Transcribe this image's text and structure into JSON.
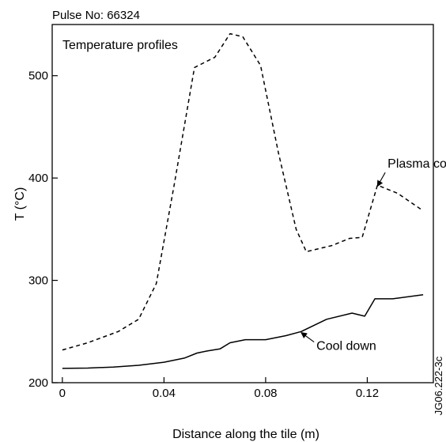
{
  "chart_data": {
    "type": "line",
    "pulse_label": "Pulse No: 66324",
    "plot_label": "Temperature profiles",
    "xlabel": "Distance along the tile (m)",
    "ylabel": "T (°C)",
    "figure_code": "JG06.222-3c",
    "xlim": [
      -0.004,
      0.146
    ],
    "ylim": [
      200,
      550
    ],
    "x_ticks": [
      0,
      0.04,
      0.08,
      0.12
    ],
    "x_tick_labels": [
      "0",
      "0.04",
      "0.08",
      "0.12"
    ],
    "y_ticks": [
      200,
      300,
      400,
      500
    ],
    "y_tick_labels": [
      "200",
      "300",
      "400",
      "500"
    ],
    "series": [
      {
        "name": "Plasma contact",
        "style": "dashed",
        "x": [
          0,
          0.01,
          0.022,
          0.03,
          0.037,
          0.044,
          0.052,
          0.06,
          0.066,
          0.071,
          0.078,
          0.085,
          0.092,
          0.096,
          0.106,
          0.113,
          0.118,
          0.124,
          0.132,
          0.142
        ],
        "y": [
          232,
          239,
          250,
          262,
          297,
          393,
          508,
          518,
          541,
          538,
          510,
          425,
          350,
          328,
          334,
          341,
          342,
          393,
          385,
          368
        ]
      },
      {
        "name": "Cool down",
        "style": "solid",
        "x": [
          0,
          0.01,
          0.02,
          0.03,
          0.04,
          0.048,
          0.053,
          0.057,
          0.062,
          0.066,
          0.072,
          0.08,
          0.088,
          0.094,
          0.104,
          0.114,
          0.119,
          0.123,
          0.13,
          0.142
        ],
        "y": [
          214,
          214.3,
          215.3,
          217,
          220,
          224,
          229,
          231,
          233,
          239,
          242,
          242,
          246,
          250,
          262,
          268,
          265,
          282,
          282,
          286
        ]
      }
    ],
    "annotations": [
      {
        "text": "Plasma contact",
        "x": 0.128,
        "y": 410,
        "arrow_to_x": 0.124,
        "arrow_to_y": 392
      },
      {
        "text": "Cool down",
        "x": 0.1,
        "y": 232,
        "arrow_to_x": 0.094,
        "arrow_to_y": 249
      }
    ]
  }
}
